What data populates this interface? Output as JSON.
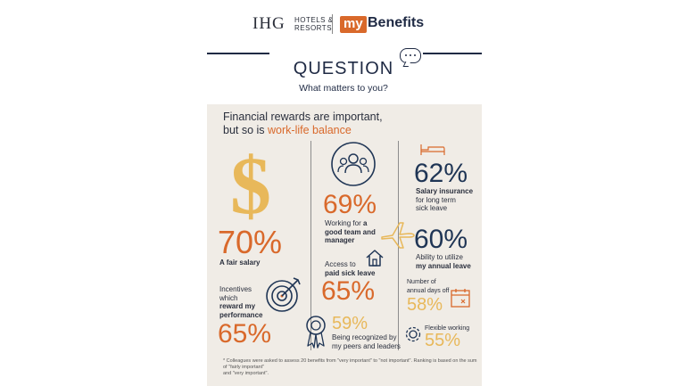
{
  "header": {
    "brand_ihg": "IHG",
    "brand_hotels": "HOTELS &",
    "brand_resorts": "RESORTS",
    "brand_my": "my",
    "brand_benefits": "Benefits"
  },
  "question": {
    "title": "QUESTION",
    "subtitle": "What matters to you?"
  },
  "panel": {
    "headline_1": "Financial rewards are important,",
    "headline_2_pre": "but so is ",
    "headline_2_hl": "work-life balance",
    "stats": [
      {
        "pct": "70%",
        "label": "A fair salary"
      },
      {
        "pct": "65%",
        "label_1": "Incentives",
        "label_2": "which",
        "label_3": "reward my",
        "label_4": "performance"
      },
      {
        "pct": "69%",
        "label_1": "Working for ",
        "label_1b": "a",
        "label_2": "good team and",
        "label_3": "manager"
      },
      {
        "pct": "65%",
        "label_1": "Access to",
        "label_2": "paid sick leave"
      },
      {
        "pct": "59%",
        "label_1": "Being recognized by",
        "label_2": "my peers and leaders"
      },
      {
        "pct": "62%",
        "label_1": "Salary insurance",
        "label_2": "for long term",
        "label_3": "sick leave"
      },
      {
        "pct": "60%",
        "label_1": "Ability to utilize",
        "label_2": "my annual leave"
      },
      {
        "pct": "58%",
        "label_1": "Number of",
        "label_2": "annual days off"
      },
      {
        "pct": "55%",
        "label_1": "Flexible working"
      }
    ],
    "footnote_1": "* Colleagues were asked to assess 20 benefits from \"very important\" to \"not important\". Ranking is based on the sum of \"fairly important\"",
    "footnote_2": "and \"very important\"."
  },
  "colors": {
    "orange": "#d9692b",
    "navy": "#1f3555",
    "gold": "#e8b85a",
    "panel": "#f0ece6"
  },
  "icons": [
    "speech-bubble-icon",
    "dollar-icon",
    "team-icon",
    "airplane-icon",
    "house-icon",
    "target-icon",
    "award-ribbon-icon",
    "bed-icon",
    "calendar-icon",
    "gear-icon"
  ]
}
